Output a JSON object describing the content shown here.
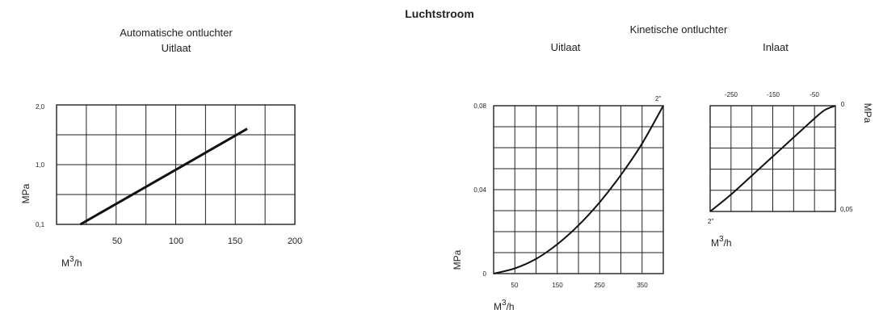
{
  "page": {
    "title": "Luchtstroom",
    "group_title": "Kinetische ontluchter"
  },
  "chart_data": [
    {
      "type": "line",
      "title": "Automatische ontluchter",
      "subtitle": "Uitlaat",
      "xlabel": "M3/h",
      "ylabel": "MPa",
      "x_ticks": [
        "50",
        "100",
        "150",
        "200"
      ],
      "y_ticks": [
        "0,1",
        "1,0",
        "2,0"
      ],
      "xlim": [
        0,
        200
      ],
      "y_tick_values": [
        0.1,
        1.0,
        2.0
      ],
      "grid": true,
      "series": [
        {
          "x": [
            20,
            160
          ],
          "y": [
            0.1,
            1.6
          ]
        }
      ]
    },
    {
      "type": "line",
      "title": "",
      "subtitle": "Uitlaat",
      "xlabel": "M3/h",
      "ylabel": "MPa",
      "x_ticks": [
        "50",
        "150",
        "250",
        "350"
      ],
      "y_ticks": [
        "0",
        "0,04",
        "0,08"
      ],
      "annotation": "2\"",
      "xlim": [
        0,
        400
      ],
      "ylim": [
        0,
        0.08
      ],
      "grid": true,
      "series": [
        {
          "x": [
            0,
            50,
            100,
            150,
            200,
            250,
            300,
            350,
            400
          ],
          "y": [
            0,
            0.0025,
            0.007,
            0.014,
            0.023,
            0.034,
            0.047,
            0.062,
            0.08
          ]
        }
      ]
    },
    {
      "type": "line",
      "title": "",
      "subtitle": "Inlaat",
      "xlabel": "M3/h",
      "ylabel": "MPa",
      "x_ticks": [
        "-250",
        "-150",
        "-50",
        "0"
      ],
      "y_ticks": [
        "0,05"
      ],
      "annotation": "2\"",
      "xlim": [
        -300,
        0
      ],
      "ylim": [
        0,
        0.05
      ],
      "grid": true,
      "series": [
        {
          "x": [
            -300,
            -250,
            -200,
            -150,
            -100,
            -50,
            -25,
            0
          ],
          "y": [
            0.05,
            0.042,
            0.033,
            0.024,
            0.015,
            0.006,
            0.002,
            0
          ]
        }
      ]
    }
  ]
}
